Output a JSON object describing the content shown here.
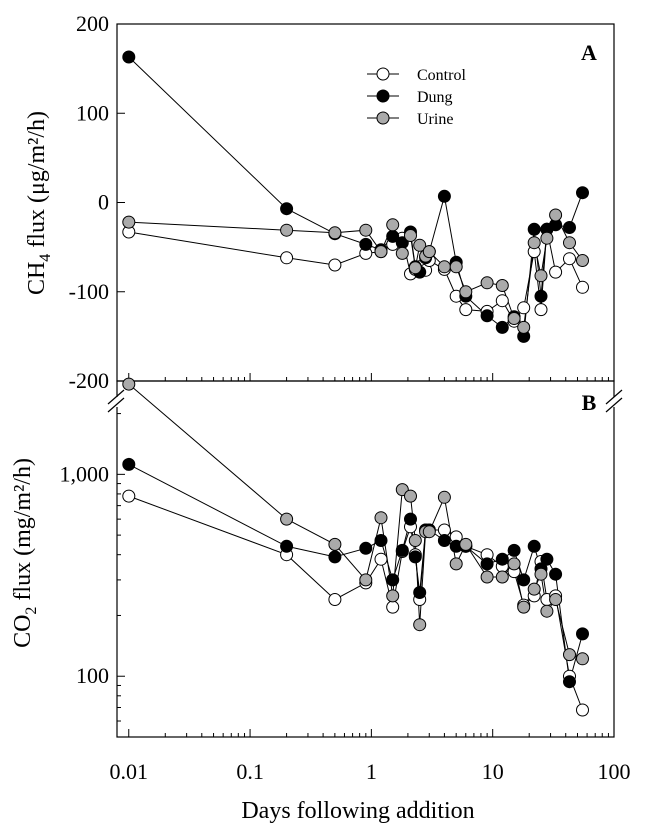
{
  "chart_data": [
    {
      "id": "A",
      "type": "line",
      "panel_label": "A",
      "ylabel": {
        "prefix": "CH",
        "sub": "4",
        "suffix": " flux (μg/m²/h)"
      },
      "x_scale": "log",
      "xlim": [
        0.008,
        100
      ],
      "ylim": [
        -200,
        200
      ],
      "y_ticks": [
        -200,
        -100,
        0,
        100,
        200
      ],
      "y_tick_labels": [
        "-200",
        "-100",
        "0",
        "100",
        "200"
      ],
      "legend": {
        "position": "top-center",
        "entries": [
          "Control",
          "Dung",
          "Urine"
        ]
      },
      "series": [
        {
          "name": "Control",
          "fill": "#ffffff",
          "x": [
            0.01,
            0.2,
            0.5,
            0.9,
            1.2,
            1.5,
            1.8,
            2.1,
            2.3,
            2.5,
            2.8,
            3.0,
            4.0,
            5.0,
            6.0,
            9.0,
            12.0,
            15.0,
            18.0,
            22.0,
            25.0,
            28.0,
            33.0,
            43.0,
            55.0
          ],
          "y": [
            -33,
            -62,
            -70,
            -57,
            -55,
            -47,
            -40,
            -80,
            -75,
            -72,
            -76,
            -65,
            -75,
            -105,
            -120,
            -122,
            -110,
            -133,
            -118,
            -55,
            -120,
            -30,
            -78,
            -63,
            -95
          ]
        },
        {
          "name": "Dung",
          "fill": "#000000",
          "x": [
            0.01,
            0.2,
            0.5,
            0.9,
            1.2,
            1.5,
            1.8,
            2.1,
            2.3,
            2.5,
            2.8,
            3.0,
            4.0,
            5.0,
            6.0,
            9.0,
            12.0,
            15.0,
            18.0,
            22.0,
            25.0,
            28.0,
            33.0,
            43.0,
            55.0
          ],
          "y": [
            163,
            -7,
            -35,
            -47,
            -53,
            -38,
            -45,
            -33,
            -72,
            -78,
            -62,
            -55,
            7,
            -67,
            -105,
            -127,
            -140,
            -128,
            -150,
            -30,
            -105,
            -30,
            -25,
            -28,
            11
          ]
        },
        {
          "name": "Urine",
          "fill": "#aaaaaa",
          "x": [
            0.01,
            0.2,
            0.5,
            0.9,
            1.2,
            1.5,
            1.8,
            2.1,
            2.3,
            2.5,
            2.8,
            3.0,
            4.0,
            5.0,
            6.0,
            9.0,
            12.0,
            15.0,
            18.0,
            22.0,
            25.0,
            28.0,
            33.0,
            43.0,
            55.0
          ],
          "y": [
            -22,
            -31,
            -34,
            -31,
            -55,
            -25,
            -57,
            -37,
            -73,
            -48,
            -60,
            -55,
            -72,
            -72,
            -100,
            -90,
            -93,
            -130,
            -140,
            -45,
            -82,
            -40,
            -14,
            -45,
            -65
          ]
        }
      ]
    },
    {
      "id": "B",
      "type": "line",
      "panel_label": "B",
      "ylabel": {
        "prefix": "CO",
        "sub": "2",
        "suffix": " flux (mg/m²/h)"
      },
      "x_scale": "log",
      "y_scale": "log",
      "xlim": [
        0.008,
        100
      ],
      "ylim": [
        50,
        2900
      ],
      "y_ticks": [
        100,
        1000
      ],
      "y_tick_labels": [
        "100",
        "1,000"
      ],
      "xlabel": "Days following addition",
      "x_ticks": [
        0.01,
        0.1,
        1,
        10,
        100
      ],
      "x_tick_labels": [
        "0.01",
        "0.1",
        "1",
        "10",
        "100"
      ],
      "series": [
        {
          "name": "Control",
          "fill": "#ffffff",
          "x": [
            0.01,
            0.2,
            0.5,
            0.9,
            1.2,
            1.5,
            1.8,
            2.1,
            2.3,
            2.5,
            2.8,
            3.0,
            4.0,
            5.0,
            6.0,
            9.0,
            12.0,
            15.0,
            18.0,
            22.0,
            25.0,
            28.0,
            33.0,
            43.0,
            55.0
          ],
          "y": [
            780,
            400,
            240,
            290,
            380,
            220,
            415,
            550,
            400,
            240,
            530,
            530,
            530,
            490,
            440,
            400,
            350,
            330,
            225,
            250,
            370,
            240,
            250,
            100,
            68
          ]
        },
        {
          "name": "Dung",
          "fill": "#000000",
          "x": [
            0.01,
            0.2,
            0.5,
            0.9,
            1.2,
            1.5,
            1.8,
            2.1,
            2.3,
            2.5,
            2.8,
            3.0,
            4.0,
            5.0,
            6.0,
            9.0,
            12.0,
            15.0,
            18.0,
            22.0,
            25.0,
            28.0,
            33.0,
            43.0,
            55.0
          ],
          "y": [
            1120,
            440,
            390,
            430,
            470,
            300,
            420,
            600,
            390,
            260,
            530,
            530,
            470,
            440,
            440,
            360,
            380,
            420,
            300,
            440,
            340,
            380,
            320,
            94,
            162
          ]
        },
        {
          "name": "Urine",
          "fill": "#aaaaaa",
          "x": [
            0.01,
            0.2,
            0.5,
            0.9,
            1.2,
            1.5,
            1.8,
            2.1,
            2.3,
            2.5,
            2.8,
            3.0,
            4.0,
            5.0,
            6.0,
            9.0,
            12.0,
            15.0,
            18.0,
            22.0,
            25.0,
            28.0,
            33.0,
            43.0,
            55.0
          ],
          "y": [
            2800,
            600,
            450,
            300,
            610,
            250,
            840,
            780,
            470,
            180,
            520,
            520,
            770,
            360,
            450,
            310,
            310,
            360,
            220,
            270,
            320,
            210,
            240,
            128,
            122
          ]
        }
      ]
    }
  ]
}
